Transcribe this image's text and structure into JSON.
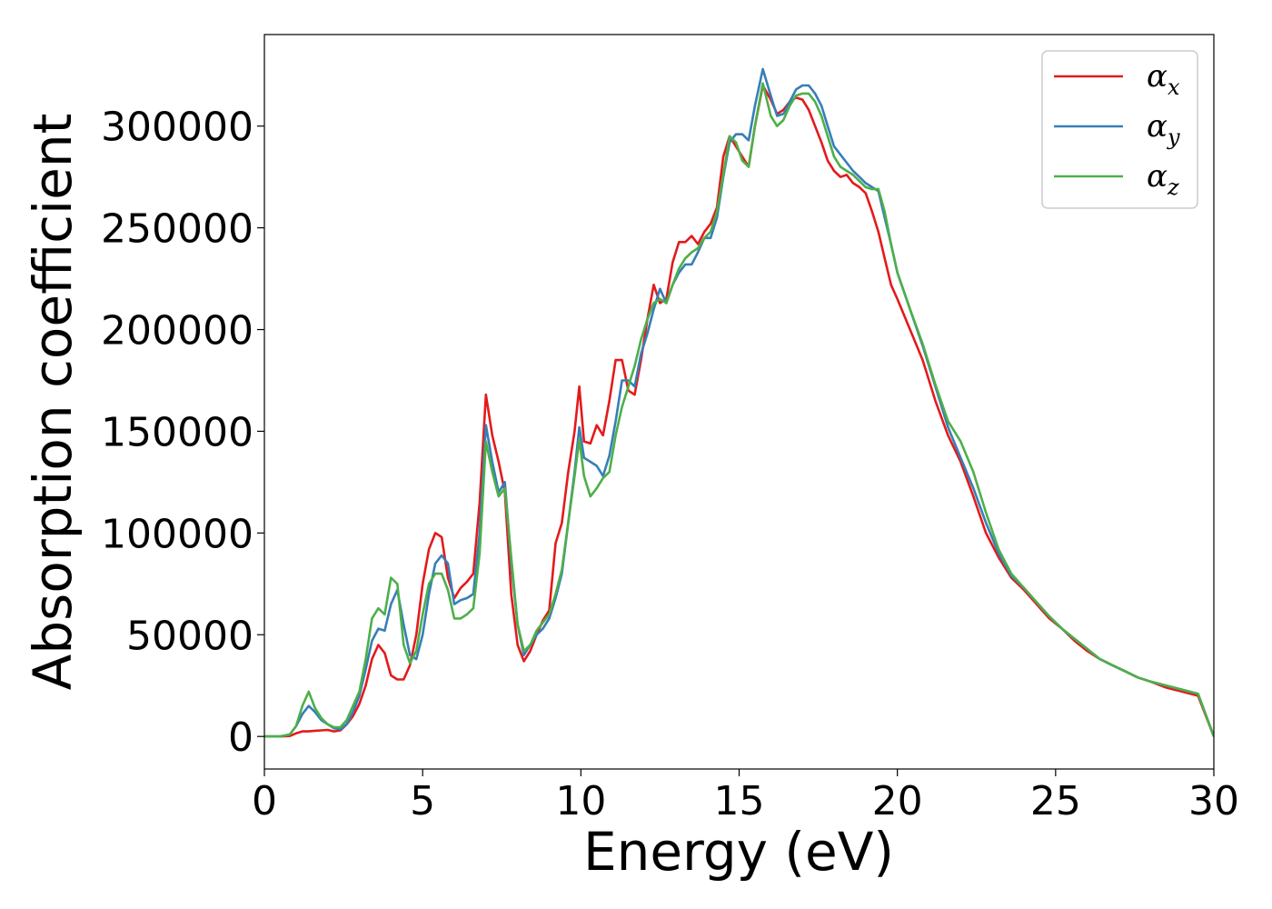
{
  "chart_data": {
    "type": "line",
    "xlabel": "Energy (eV)",
    "ylabel": "Absorption coefficient",
    "xlim": [
      0,
      30
    ],
    "ylim": [
      -16000,
      345000
    ],
    "x_ticks": [
      0,
      5,
      10,
      15,
      20,
      25,
      30
    ],
    "y_ticks": [
      0,
      50000,
      100000,
      150000,
      200000,
      250000,
      300000
    ],
    "grid": false,
    "legend_position": "top-right",
    "series": [
      {
        "name": "αx",
        "symbol": "α",
        "subscript": "x",
        "color": "#e41a1c",
        "x": [
          0,
          0.5,
          0.8,
          1.0,
          1.2,
          1.4,
          1.6,
          1.8,
          2.0,
          2.2,
          2.4,
          2.6,
          2.8,
          3.0,
          3.2,
          3.4,
          3.6,
          3.8,
          4.0,
          4.2,
          4.4,
          4.6,
          4.8,
          5.0,
          5.2,
          5.4,
          5.6,
          5.8,
          6.0,
          6.2,
          6.4,
          6.6,
          6.8,
          7.0,
          7.2,
          7.4,
          7.6,
          7.8,
          8.0,
          8.2,
          8.4,
          8.6,
          8.8,
          9.0,
          9.2,
          9.4,
          9.6,
          9.8,
          9.95,
          10.1,
          10.3,
          10.5,
          10.7,
          10.9,
          11.1,
          11.3,
          11.5,
          11.7,
          11.9,
          12.1,
          12.3,
          12.5,
          12.7,
          12.9,
          13.1,
          13.3,
          13.5,
          13.7,
          13.9,
          14.1,
          14.3,
          14.5,
          14.7,
          14.9,
          15.1,
          15.3,
          15.5,
          15.75,
          16.0,
          16.2,
          16.4,
          16.6,
          16.8,
          17.0,
          17.2,
          17.4,
          17.6,
          17.8,
          18.0,
          18.2,
          18.4,
          18.6,
          18.8,
          19.0,
          19.2,
          19.4,
          19.6,
          19.8,
          20.0,
          20.4,
          20.8,
          21.2,
          21.6,
          22.0,
          22.4,
          22.8,
          23.2,
          23.6,
          24.0,
          24.4,
          24.8,
          25.2,
          25.6,
          26.0,
          26.4,
          26.8,
          27.2,
          27.6,
          28.0,
          28.5,
          29.0,
          29.5,
          30.0
        ],
        "values": [
          0,
          0,
          200,
          1500,
          2500,
          2500,
          2800,
          3000,
          3200,
          2500,
          3000,
          6000,
          10000,
          16000,
          25000,
          38000,
          45000,
          41000,
          30000,
          28000,
          28000,
          35000,
          50000,
          75000,
          92000,
          100000,
          98000,
          78000,
          68000,
          73000,
          76000,
          80000,
          115000,
          168000,
          148000,
          135000,
          120000,
          70000,
          45000,
          37000,
          42000,
          50000,
          57000,
          62000,
          95000,
          105000,
          130000,
          150000,
          172000,
          145000,
          144000,
          153000,
          148000,
          165000,
          185000,
          185000,
          170000,
          168000,
          185000,
          205000,
          222000,
          213000,
          215000,
          233000,
          243000,
          243000,
          246000,
          242000,
          248000,
          252000,
          260000,
          285000,
          295000,
          290000,
          285000,
          280000,
          300000,
          320000,
          313000,
          306000,
          308000,
          312000,
          314000,
          313000,
          308000,
          300000,
          292000,
          283000,
          278000,
          275000,
          276000,
          272000,
          270000,
          267000,
          258000,
          248000,
          235000,
          222000,
          215000,
          200000,
          185000,
          165000,
          148000,
          135000,
          118000,
          100000,
          88000,
          78000,
          72000,
          65000,
          58000,
          53000,
          47000,
          42000,
          38000,
          35000,
          32000,
          29000,
          27000,
          24000,
          22000,
          20000,
          0
        ],
        "note": ""
      },
      {
        "name": "αy",
        "symbol": "α",
        "subscript": "y",
        "color": "#377eb8",
        "x": [
          0,
          0.5,
          0.8,
          1.0,
          1.2,
          1.4,
          1.6,
          1.8,
          2.0,
          2.2,
          2.4,
          2.6,
          2.8,
          3.0,
          3.2,
          3.4,
          3.6,
          3.8,
          4.0,
          4.2,
          4.4,
          4.6,
          4.8,
          5.0,
          5.2,
          5.4,
          5.6,
          5.8,
          6.0,
          6.2,
          6.4,
          6.6,
          6.8,
          7.0,
          7.2,
          7.4,
          7.6,
          7.8,
          8.0,
          8.2,
          8.4,
          8.6,
          8.8,
          9.0,
          9.2,
          9.4,
          9.6,
          9.8,
          9.95,
          10.1,
          10.3,
          10.5,
          10.7,
          10.9,
          11.1,
          11.3,
          11.5,
          11.7,
          11.9,
          12.1,
          12.3,
          12.5,
          12.7,
          12.9,
          13.1,
          13.3,
          13.5,
          13.7,
          13.9,
          14.1,
          14.3,
          14.5,
          14.7,
          14.9,
          15.1,
          15.3,
          15.5,
          15.75,
          16.0,
          16.2,
          16.4,
          16.6,
          16.8,
          17.0,
          17.2,
          17.4,
          17.6,
          17.8,
          18.0,
          18.2,
          18.4,
          18.6,
          18.8,
          19.0,
          19.2,
          19.4,
          19.6,
          19.8,
          20.0,
          20.4,
          20.8,
          21.2,
          21.6,
          22.0,
          22.4,
          22.8,
          23.2,
          23.6,
          24.0,
          24.4,
          24.8,
          25.2,
          25.6,
          26.0,
          26.4,
          26.8,
          27.2,
          27.6,
          28.0,
          28.5,
          29.0,
          29.5,
          30.0
        ],
        "values": [
          0,
          0,
          1000,
          5000,
          11000,
          15000,
          12000,
          8000,
          6000,
          4000,
          3500,
          6000,
          12000,
          20000,
          33000,
          47000,
          53000,
          52000,
          65000,
          72000,
          55000,
          40000,
          38000,
          50000,
          70000,
          85000,
          89000,
          85000,
          65000,
          67000,
          68000,
          70000,
          100000,
          153000,
          135000,
          120000,
          125000,
          85000,
          55000,
          40000,
          45000,
          50000,
          53000,
          58000,
          68000,
          80000,
          105000,
          130000,
          152000,
          137000,
          135000,
          133000,
          128000,
          138000,
          155000,
          175000,
          175000,
          172000,
          188000,
          198000,
          210000,
          220000,
          213000,
          222000,
          228000,
          232000,
          232000,
          238000,
          245000,
          245000,
          255000,
          275000,
          292000,
          296000,
          296000,
          293000,
          310000,
          328000,
          315000,
          305000,
          306000,
          312000,
          318000,
          320000,
          320000,
          316000,
          310000,
          300000,
          290000,
          286000,
          282000,
          278000,
          275000,
          272000,
          270000,
          268000,
          255000,
          242000,
          228000,
          210000,
          192000,
          172000,
          152000,
          137000,
          122000,
          105000,
          90000,
          79000,
          73000,
          66000,
          59000,
          53000,
          48000,
          43000,
          38000,
          35000,
          32000,
          29000,
          27000,
          25000,
          23000,
          21000,
          0
        ],
        "note": ""
      },
      {
        "name": "αz",
        "symbol": "α",
        "subscript": "z",
        "color": "#4daf4a",
        "x": [
          0,
          0.5,
          0.8,
          1.0,
          1.2,
          1.4,
          1.6,
          1.8,
          2.0,
          2.2,
          2.4,
          2.6,
          2.8,
          3.0,
          3.2,
          3.4,
          3.6,
          3.8,
          4.0,
          4.2,
          4.4,
          4.6,
          4.8,
          5.0,
          5.2,
          5.4,
          5.6,
          5.8,
          6.0,
          6.2,
          6.4,
          6.6,
          6.8,
          7.0,
          7.2,
          7.4,
          7.6,
          7.8,
          8.0,
          8.2,
          8.4,
          8.6,
          8.8,
          9.0,
          9.2,
          9.4,
          9.6,
          9.8,
          9.95,
          10.1,
          10.3,
          10.5,
          10.7,
          10.9,
          11.1,
          11.3,
          11.5,
          11.7,
          11.9,
          12.1,
          12.3,
          12.5,
          12.7,
          12.9,
          13.1,
          13.3,
          13.5,
          13.7,
          13.9,
          14.1,
          14.3,
          14.5,
          14.7,
          14.9,
          15.1,
          15.3,
          15.5,
          15.75,
          16.0,
          16.2,
          16.4,
          16.6,
          16.8,
          17.0,
          17.2,
          17.4,
          17.6,
          17.8,
          18.0,
          18.2,
          18.4,
          18.6,
          18.8,
          19.0,
          19.2,
          19.4,
          19.6,
          19.8,
          20.0,
          20.4,
          20.8,
          21.2,
          21.6,
          22.0,
          22.4,
          22.8,
          23.2,
          23.6,
          24.0,
          24.4,
          24.8,
          25.2,
          25.6,
          26.0,
          26.4,
          26.8,
          27.2,
          27.6,
          28.0,
          28.5,
          29.0,
          29.5,
          30.0
        ],
        "values": [
          0,
          0,
          1000,
          5000,
          15000,
          22000,
          14000,
          9000,
          6000,
          4500,
          4500,
          8000,
          15000,
          22000,
          38000,
          58000,
          63000,
          60000,
          78000,
          75000,
          45000,
          36000,
          42000,
          60000,
          75000,
          80000,
          80000,
          72000,
          58000,
          58000,
          60000,
          63000,
          90000,
          145000,
          130000,
          118000,
          122000,
          88000,
          55000,
          42000,
          45000,
          52000,
          56000,
          60000,
          70000,
          82000,
          105000,
          128000,
          146000,
          128000,
          118000,
          122000,
          127000,
          130000,
          148000,
          162000,
          172000,
          182000,
          195000,
          205000,
          213000,
          215000,
          213000,
          222000,
          230000,
          235000,
          238000,
          240000,
          245000,
          248000,
          258000,
          276000,
          295000,
          292000,
          283000,
          280000,
          300000,
          321000,
          305000,
          300000,
          303000,
          310000,
          315000,
          316000,
          316000,
          312000,
          305000,
          295000,
          285000,
          280000,
          278000,
          276000,
          273000,
          270000,
          269000,
          269000,
          258000,
          242000,
          228000,
          210000,
          193000,
          173000,
          155000,
          145000,
          130000,
          110000,
          92000,
          80000,
          73000,
          66000,
          59000,
          53000,
          48000,
          43000,
          38000,
          35000,
          32000,
          29000,
          27000,
          25000,
          23000,
          21000,
          0
        ]
      }
    ]
  }
}
